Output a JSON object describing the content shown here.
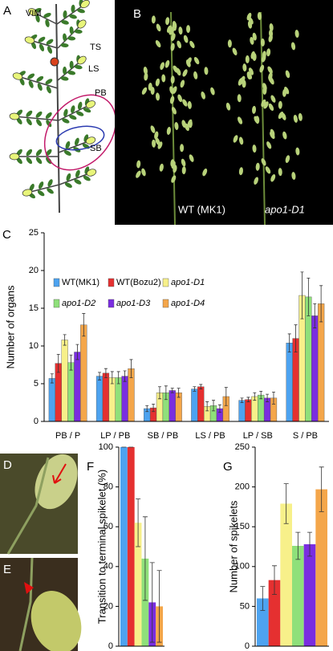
{
  "diagram": {
    "label": "A",
    "labels": [
      "VIM",
      "TS",
      "LS",
      "PB",
      "SB"
    ]
  },
  "photo_b": {
    "label": "B",
    "captions": [
      "WT (MK1)",
      "apo1-D1"
    ]
  },
  "photo_d": {
    "label": "D"
  },
  "photo_e": {
    "label": "E"
  },
  "chart_data": [
    {
      "type": "bar",
      "panel_label": "C",
      "ylabel": "Number of organs",
      "categories": [
        "PB / P",
        "LP / PB",
        "SB / PB",
        "LS / PB",
        "LP / SB",
        "S / PB"
      ],
      "series": [
        {
          "name": "WT(MK1)",
          "color": "#4da3f0",
          "values": [
            5.7,
            6.0,
            1.7,
            4.3,
            2.8,
            10.4
          ],
          "errors": [
            0.6,
            0.5,
            0.4,
            0.3,
            0.3,
            1.2
          ]
        },
        {
          "name": "WT(Bozu2)",
          "color": "#e53030",
          "values": [
            7.7,
            6.4,
            1.8,
            4.6,
            2.9,
            11.0
          ],
          "errors": [
            1.2,
            0.6,
            0.5,
            0.3,
            0.3,
            1.8
          ]
        },
        {
          "name": "apo1-D1",
          "color": "#f7f08a",
          "values": [
            10.8,
            5.8,
            3.8,
            2.0,
            3.3,
            16.7
          ],
          "errors": [
            0.7,
            0.8,
            0.8,
            0.6,
            0.5,
            3.1
          ]
        },
        {
          "name": "apo1-D2",
          "color": "#8fe07a",
          "values": [
            7.8,
            5.8,
            3.8,
            2.1,
            3.5,
            16.5
          ],
          "errors": [
            1.0,
            0.8,
            0.9,
            0.7,
            0.5,
            2.5
          ]
        },
        {
          "name": "apo1-D3",
          "color": "#7a2de0",
          "values": [
            9.2,
            6.0,
            4.1,
            1.7,
            3.1,
            14.0
          ],
          "errors": [
            1.0,
            0.7,
            0.3,
            0.5,
            0.5,
            1.6
          ]
        },
        {
          "name": "apo1-D4",
          "color": "#f4a64a",
          "values": [
            12.8,
            7.0,
            3.8,
            3.3,
            3.1,
            15.6
          ],
          "errors": [
            1.5,
            1.2,
            0.6,
            1.2,
            0.8,
            2.4
          ]
        }
      ],
      "ylim": [
        0,
        25
      ],
      "yticks": [
        0,
        5,
        10,
        15,
        20,
        25
      ],
      "legend": "top-left"
    },
    {
      "type": "bar",
      "panel_label": "F",
      "ylabel": "Transition to terminal spikelet (%)",
      "values": [
        100,
        100,
        62,
        44,
        22,
        20
      ],
      "errors": [
        0,
        0,
        12,
        21,
        20,
        18
      ],
      "colors": [
        "#4da3f0",
        "#e53030",
        "#f7f08a",
        "#8fe07a",
        "#7a2de0",
        "#f4a64a"
      ],
      "ylim": [
        0,
        100
      ],
      "yticks": [
        0,
        20,
        40,
        60,
        80,
        100
      ]
    },
    {
      "type": "bar",
      "panel_label": "G",
      "ylabel": "Number of spikelets",
      "values": [
        60,
        83,
        179,
        126,
        128,
        197
      ],
      "errors": [
        15,
        18,
        25,
        17,
        15,
        28
      ],
      "colors": [
        "#4da3f0",
        "#e53030",
        "#f7f08a",
        "#8fe07a",
        "#7a2de0",
        "#f4a64a"
      ],
      "ylim": [
        0,
        250
      ],
      "yticks": [
        0,
        50,
        100,
        150,
        200,
        250
      ]
    }
  ]
}
